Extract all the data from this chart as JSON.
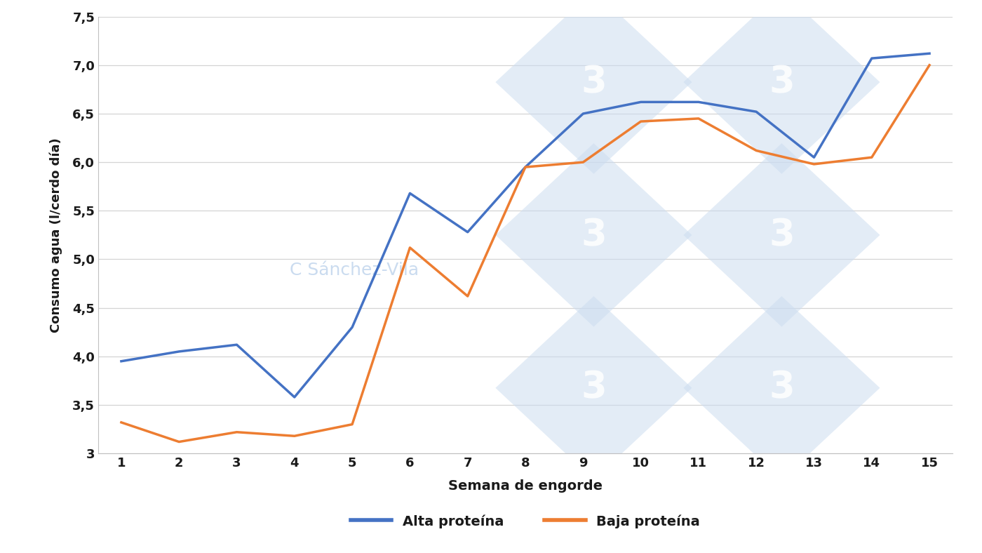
{
  "semanas": [
    1,
    2,
    3,
    4,
    5,
    6,
    7,
    8,
    9,
    10,
    11,
    12,
    13,
    14,
    15
  ],
  "alta_proteina": [
    3.95,
    4.05,
    4.12,
    3.58,
    4.3,
    5.68,
    5.28,
    5.95,
    6.5,
    6.62,
    6.62,
    6.52,
    6.05,
    7.07,
    7.12
  ],
  "baja_proteina": [
    3.32,
    3.12,
    3.22,
    3.18,
    3.3,
    5.12,
    4.62,
    5.95,
    6.0,
    6.42,
    6.45,
    6.12,
    5.98,
    6.05,
    7.0
  ],
  "alta_color": "#4472C4",
  "baja_color": "#ED7D31",
  "xlabel": "Semana de engorde",
  "ylabel": "Consumo agua (l/cerdo día)",
  "ylim_min": 3.0,
  "ylim_max": 7.5,
  "yticks": [
    3.0,
    3.5,
    4.0,
    4.5,
    5.0,
    5.5,
    6.0,
    6.5,
    7.0,
    7.5
  ],
  "ytick_labels": [
    "3",
    "3,5",
    "4,0",
    "4,5",
    "5,0",
    "5,5",
    "6,0",
    "6,5",
    "7,0",
    "7,5"
  ],
  "legend_alta": "Alta proteína",
  "legend_baja": "Baja proteína",
  "background_color": "#ffffff",
  "grid_color": "#d4d4d4",
  "line_width": 2.5,
  "watermark_text": "C Sánchez-Vila",
  "watermark_color": "#c5d8ee",
  "watermark_alpha": 0.6,
  "logo_color": "#ccddf0",
  "logo_alpha": 0.55
}
